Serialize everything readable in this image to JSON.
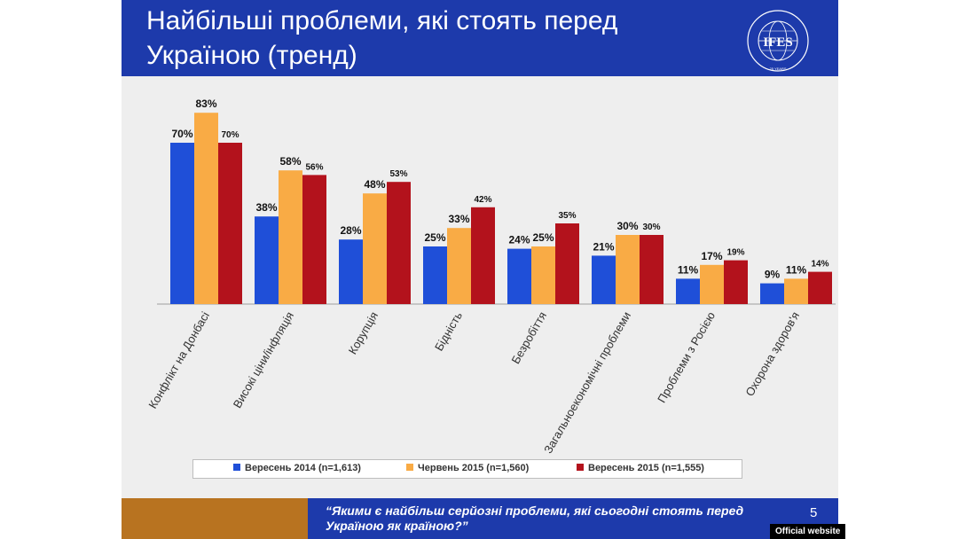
{
  "header": {
    "title": "Найбільші проблеми, які стоять перед\nУкраїною  (тренд)",
    "logo_text": "IFES",
    "logo_ring_text": "INTERNATIONAL FOUNDATION FOR ELECTORAL SYSTEMS",
    "logo_years": "25 YEARS"
  },
  "colors": {
    "header_bg": "#1d3aab",
    "footer_accent": "#b87320",
    "slide_bg": "#eeeeee"
  },
  "chart_data": {
    "type": "bar",
    "title": "",
    "xlabel": "",
    "ylabel": "",
    "ylim": [
      0,
      90
    ],
    "grid": false,
    "legend_position": "bottom",
    "categories": [
      "Конфлікт на Донбасі",
      "Високі ціни/інфляція",
      "Корупція",
      "Бідність",
      "Безробіття",
      "Загальноекономічні проблеми",
      "Проблеми з Росією",
      "Охорона здоров'я"
    ],
    "series": [
      {
        "name": "Вересень 2014 (n=1,613)",
        "color": "#1f4fd8",
        "values": [
          70,
          38,
          28,
          25,
          24,
          21,
          11,
          9
        ]
      },
      {
        "name": "Червень 2015 (n=1,560)",
        "color": "#f9ab45",
        "values": [
          83,
          58,
          48,
          33,
          25,
          30,
          17,
          11
        ]
      },
      {
        "name": "Вересень  2015 (n=1,555)",
        "color": "#b3121c",
        "values": [
          70,
          56,
          53,
          42,
          35,
          30,
          19,
          14
        ]
      }
    ],
    "value_labels": [
      [
        "70%",
        "38%",
        "28%",
        "25%",
        "24%",
        "21%",
        "11%",
        "9%"
      ],
      [
        "83%",
        "58%",
        "48%",
        "33%",
        "25%",
        "30%",
        "17%",
        "11%"
      ],
      [
        "70%",
        "56%",
        "53%",
        "42%",
        "35%",
        "30%",
        "19%",
        "14%"
      ]
    ]
  },
  "footer": {
    "question": "“Якими є найбільш серйозні проблеми, які сьогодні стоять перед Україною як країною?”",
    "page_number": "5"
  },
  "badge": "Official website"
}
